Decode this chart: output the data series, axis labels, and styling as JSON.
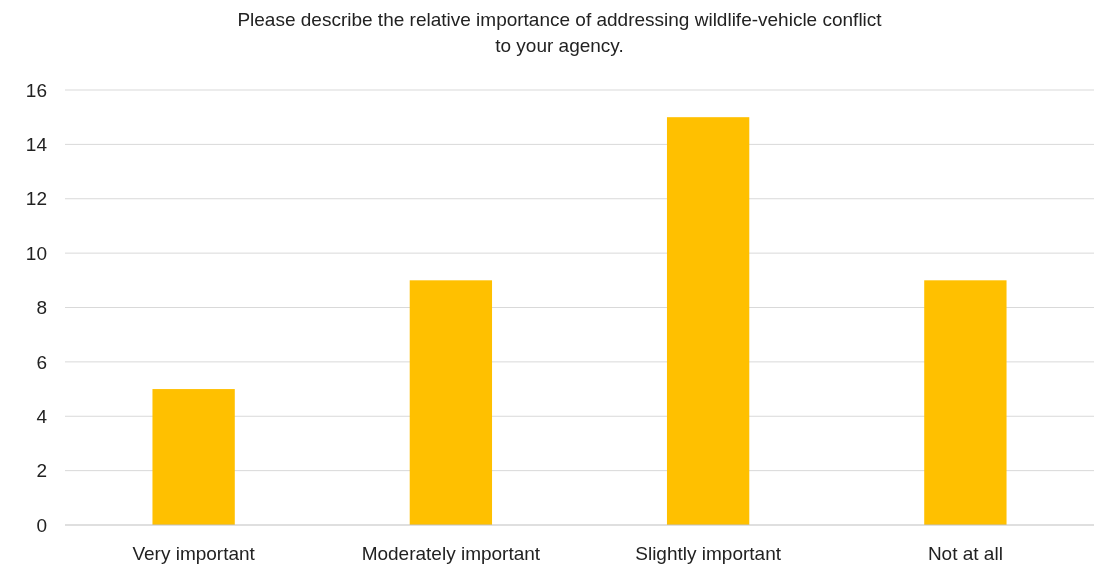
{
  "chart_data": {
    "type": "bar",
    "title": "Please describe the relative importance of addressing wildlife-vehicle conflict\nto your agency.",
    "categories": [
      "Very important",
      "Moderately important",
      "Slightly important",
      "Not at all"
    ],
    "values": [
      5,
      9,
      15,
      9
    ],
    "color": "#ffc000",
    "ylim": [
      0,
      16
    ],
    "yticks": [
      0,
      2,
      4,
      6,
      8,
      10,
      12,
      14,
      16
    ],
    "grid": "y"
  }
}
